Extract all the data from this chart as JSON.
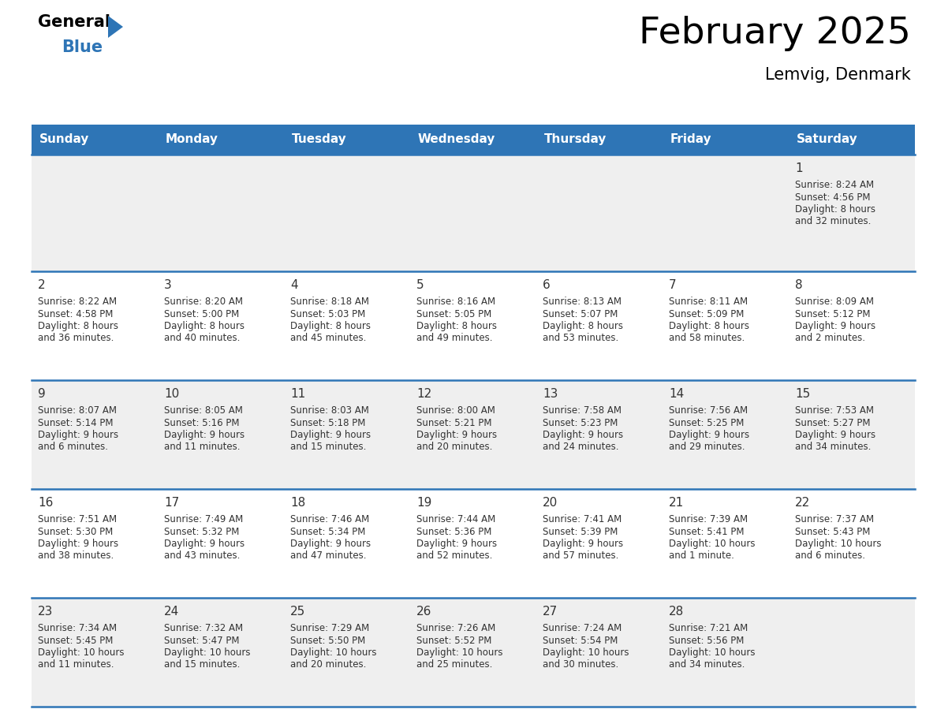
{
  "title": "February 2025",
  "subtitle": "Lemvig, Denmark",
  "header_color": "#2E75B6",
  "header_text_color": "#FFFFFF",
  "day_names": [
    "Sunday",
    "Monday",
    "Tuesday",
    "Wednesday",
    "Thursday",
    "Friday",
    "Saturday"
  ],
  "cell_bg_even": "#EFEFEF",
  "cell_bg_odd": "#FFFFFF",
  "cell_border_color": "#2E75B6",
  "text_color": "#333333",
  "days": [
    {
      "day": 1,
      "col": 6,
      "row": 0,
      "sunrise": "8:24 AM",
      "sunset": "4:56 PM",
      "daylight": "8 hours and 32 minutes"
    },
    {
      "day": 2,
      "col": 0,
      "row": 1,
      "sunrise": "8:22 AM",
      "sunset": "4:58 PM",
      "daylight": "8 hours and 36 minutes"
    },
    {
      "day": 3,
      "col": 1,
      "row": 1,
      "sunrise": "8:20 AM",
      "sunset": "5:00 PM",
      "daylight": "8 hours and 40 minutes"
    },
    {
      "day": 4,
      "col": 2,
      "row": 1,
      "sunrise": "8:18 AM",
      "sunset": "5:03 PM",
      "daylight": "8 hours and 45 minutes"
    },
    {
      "day": 5,
      "col": 3,
      "row": 1,
      "sunrise": "8:16 AM",
      "sunset": "5:05 PM",
      "daylight": "8 hours and 49 minutes"
    },
    {
      "day": 6,
      "col": 4,
      "row": 1,
      "sunrise": "8:13 AM",
      "sunset": "5:07 PM",
      "daylight": "8 hours and 53 minutes"
    },
    {
      "day": 7,
      "col": 5,
      "row": 1,
      "sunrise": "8:11 AM",
      "sunset": "5:09 PM",
      "daylight": "8 hours and 58 minutes"
    },
    {
      "day": 8,
      "col": 6,
      "row": 1,
      "sunrise": "8:09 AM",
      "sunset": "5:12 PM",
      "daylight": "9 hours and 2 minutes"
    },
    {
      "day": 9,
      "col": 0,
      "row": 2,
      "sunrise": "8:07 AM",
      "sunset": "5:14 PM",
      "daylight": "9 hours and 6 minutes"
    },
    {
      "day": 10,
      "col": 1,
      "row": 2,
      "sunrise": "8:05 AM",
      "sunset": "5:16 PM",
      "daylight": "9 hours and 11 minutes"
    },
    {
      "day": 11,
      "col": 2,
      "row": 2,
      "sunrise": "8:03 AM",
      "sunset": "5:18 PM",
      "daylight": "9 hours and 15 minutes"
    },
    {
      "day": 12,
      "col": 3,
      "row": 2,
      "sunrise": "8:00 AM",
      "sunset": "5:21 PM",
      "daylight": "9 hours and 20 minutes"
    },
    {
      "day": 13,
      "col": 4,
      "row": 2,
      "sunrise": "7:58 AM",
      "sunset": "5:23 PM",
      "daylight": "9 hours and 24 minutes"
    },
    {
      "day": 14,
      "col": 5,
      "row": 2,
      "sunrise": "7:56 AM",
      "sunset": "5:25 PM",
      "daylight": "9 hours and 29 minutes"
    },
    {
      "day": 15,
      "col": 6,
      "row": 2,
      "sunrise": "7:53 AM",
      "sunset": "5:27 PM",
      "daylight": "9 hours and 34 minutes"
    },
    {
      "day": 16,
      "col": 0,
      "row": 3,
      "sunrise": "7:51 AM",
      "sunset": "5:30 PM",
      "daylight": "9 hours and 38 minutes"
    },
    {
      "day": 17,
      "col": 1,
      "row": 3,
      "sunrise": "7:49 AM",
      "sunset": "5:32 PM",
      "daylight": "9 hours and 43 minutes"
    },
    {
      "day": 18,
      "col": 2,
      "row": 3,
      "sunrise": "7:46 AM",
      "sunset": "5:34 PM",
      "daylight": "9 hours and 47 minutes"
    },
    {
      "day": 19,
      "col": 3,
      "row": 3,
      "sunrise": "7:44 AM",
      "sunset": "5:36 PM",
      "daylight": "9 hours and 52 minutes"
    },
    {
      "day": 20,
      "col": 4,
      "row": 3,
      "sunrise": "7:41 AM",
      "sunset": "5:39 PM",
      "daylight": "9 hours and 57 minutes"
    },
    {
      "day": 21,
      "col": 5,
      "row": 3,
      "sunrise": "7:39 AM",
      "sunset": "5:41 PM",
      "daylight": "10 hours and 1 minute"
    },
    {
      "day": 22,
      "col": 6,
      "row": 3,
      "sunrise": "7:37 AM",
      "sunset": "5:43 PM",
      "daylight": "10 hours and 6 minutes"
    },
    {
      "day": 23,
      "col": 0,
      "row": 4,
      "sunrise": "7:34 AM",
      "sunset": "5:45 PM",
      "daylight": "10 hours and 11 minutes"
    },
    {
      "day": 24,
      "col": 1,
      "row": 4,
      "sunrise": "7:32 AM",
      "sunset": "5:47 PM",
      "daylight": "10 hours and 15 minutes"
    },
    {
      "day": 25,
      "col": 2,
      "row": 4,
      "sunrise": "7:29 AM",
      "sunset": "5:50 PM",
      "daylight": "10 hours and 20 minutes"
    },
    {
      "day": 26,
      "col": 3,
      "row": 4,
      "sunrise": "7:26 AM",
      "sunset": "5:52 PM",
      "daylight": "10 hours and 25 minutes"
    },
    {
      "day": 27,
      "col": 4,
      "row": 4,
      "sunrise": "7:24 AM",
      "sunset": "5:54 PM",
      "daylight": "10 hours and 30 minutes"
    },
    {
      "day": 28,
      "col": 5,
      "row": 4,
      "sunrise": "7:21 AM",
      "sunset": "5:56 PM",
      "daylight": "10 hours and 34 minutes"
    }
  ],
  "num_rows": 5,
  "num_cols": 7,
  "logo_triangle_color": "#2E75B6",
  "title_fontsize": 34,
  "subtitle_fontsize": 15,
  "header_fontsize": 11,
  "daynum_fontsize": 11,
  "cell_text_fontsize": 8.5
}
